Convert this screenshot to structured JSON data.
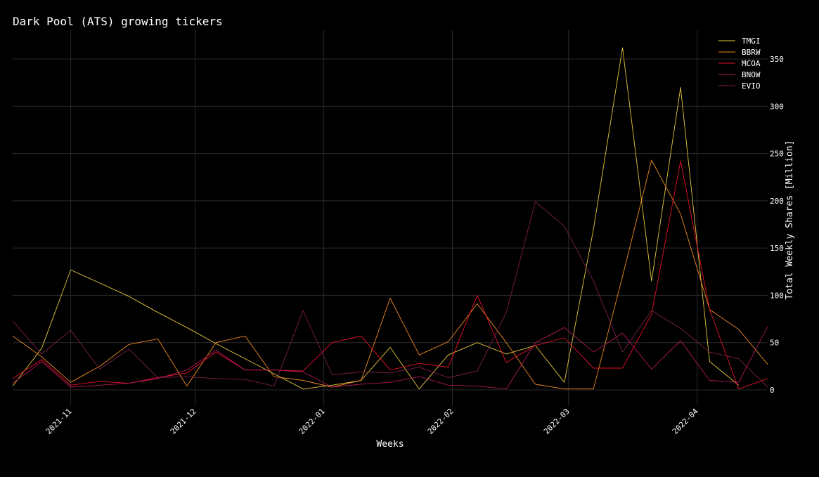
{
  "chart_data": {
    "type": "line",
    "title": "Dark Pool (ATS) growing tickers",
    "xlabel": "Weeks",
    "ylabel": "Total Weekly Shares [Million]",
    "x_tick_labels": [
      "2021-11",
      "2021-12",
      "2022-01",
      "2022-02",
      "2022-03",
      "2022-04"
    ],
    "y_ticks": [
      0,
      50,
      100,
      150,
      200,
      250,
      300,
      350
    ],
    "ylim": [
      -15,
      380
    ],
    "grid": true,
    "legend_position": "top-right",
    "x": [
      "2021-10-18",
      "2021-10-25",
      "2021-11-01",
      "2021-11-08",
      "2021-11-15",
      "2021-11-22",
      "2021-11-29",
      "2021-12-06",
      "2021-12-13",
      "2021-12-20",
      "2021-12-27",
      "2022-01-03",
      "2022-01-10",
      "2022-01-17",
      "2022-01-24",
      "2022-01-31",
      "2022-02-07",
      "2022-02-14",
      "2022-02-21",
      "2022-02-28",
      "2022-03-07",
      "2022-03-14",
      "2022-03-21",
      "2022-03-28",
      "2022-04-04",
      "2022-04-11",
      "2022-04-18"
    ],
    "series": [
      {
        "name": "TMGI",
        "color": "#e6c83c",
        "values": [
          4,
          44,
          127,
          113,
          99,
          82,
          66,
          49,
          33,
          17,
          1,
          5,
          10,
          45,
          1,
          37,
          50,
          38,
          47,
          8,
          170,
          362,
          115,
          320,
          30,
          5,
          null
        ]
      },
      {
        "name": "BBRW",
        "color": "#f08a24",
        "values": [
          57,
          35,
          8,
          25,
          48,
          54,
          4,
          50,
          57,
          14,
          10,
          3,
          10,
          97,
          37,
          51,
          91,
          50,
          6,
          1,
          1,
          120,
          243,
          186,
          85,
          64,
          27
        ]
      },
      {
        "name": "MCOA",
        "color": "#e8102a",
        "values": [
          12,
          32,
          5,
          9,
          7,
          13,
          18,
          40,
          21,
          21,
          20,
          50,
          57,
          21,
          28,
          24,
          100,
          29,
          47,
          55,
          23,
          23,
          80,
          242,
          85,
          1,
          12
        ]
      },
      {
        "name": "BNOW",
        "color": "#b0195a",
        "values": [
          7,
          30,
          3,
          5,
          7,
          12,
          21,
          42,
          21,
          21,
          19,
          3,
          6,
          8,
          14,
          5,
          4,
          1,
          50,
          66,
          40,
          60,
          22,
          52,
          10,
          8,
          67
        ]
      },
      {
        "name": "EVIO",
        "color": "#7a1e4a",
        "values": [
          73,
          38,
          63,
          22,
          43,
          13,
          14,
          12,
          11,
          4,
          84,
          16,
          19,
          18,
          24,
          13,
          20,
          82,
          199,
          173,
          115,
          40,
          84,
          65,
          40,
          33,
          3
        ]
      }
    ]
  }
}
